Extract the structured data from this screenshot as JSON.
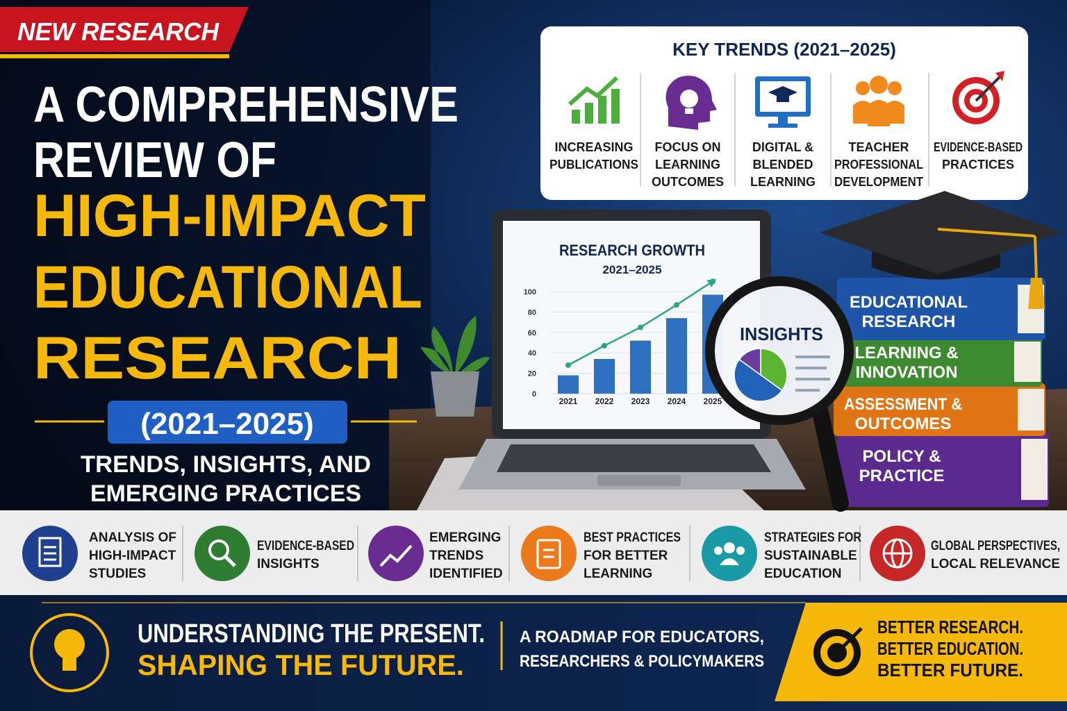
{
  "badge": "NEW RESEARCH",
  "title": {
    "lines": [
      "A COMPREHENSIVE",
      "REVIEW OF",
      "HIGH-IMPACT",
      "EDUCATIONAL",
      "RESEARCH"
    ]
  },
  "period": "(2021–2025)",
  "subtitle": [
    "TRENDS, INSIGHTS, AND",
    "EMERGING PRACTICES"
  ],
  "key_trends": {
    "title": "KEY TRENDS (2021–2025)",
    "items": [
      [
        "INCREASING",
        "PUBLICATIONS"
      ],
      [
        "FOCUS ON",
        "LEARNING",
        "OUTCOMES"
      ],
      [
        "DIGITAL &",
        "BLENDED",
        "LEARNING"
      ],
      [
        "TEACHER",
        "PROFESSIONAL",
        "DEVELOPMENT"
      ],
      [
        "EVIDENCE-BASED",
        "PRACTICES"
      ]
    ]
  },
  "chart_data": [
    {
      "type": "bar",
      "title": "RESEARCH GROWTH",
      "subtitle": "2021–2025",
      "categories": [
        "2021",
        "2022",
        "2023",
        "2024",
        "2025"
      ],
      "values": [
        18,
        34,
        52,
        74,
        97
      ],
      "color": "#2f6fc0",
      "trend": [
        28,
        47,
        65,
        87,
        110
      ],
      "trend_color": "#2aa58a",
      "ylim": [
        0,
        115
      ],
      "yticks": [
        0,
        20,
        40,
        60,
        80,
        100
      ],
      "grid": true
    },
    {
      "type": "pie",
      "title": "INSIGHTS",
      "values": [
        35,
        50,
        15
      ],
      "colors": [
        "#5cb531",
        "#2163b8",
        "#6a3ca0"
      ]
    }
  ],
  "books": [
    [
      "EDUCATIONAL",
      "RESEARCH"
    ],
    [
      "LEARNING &",
      "INNOVATION"
    ],
    [
      "ASSESSMENT &",
      "OUTCOMES"
    ],
    [
      "POLICY &",
      "PRACTICE"
    ]
  ],
  "features": [
    [
      "ANALYSIS OF",
      "HIGH-IMPACT",
      "STUDIES"
    ],
    [
      "EVIDENCE-BASED",
      "INSIGHTS"
    ],
    [
      "EMERGING",
      "TRENDS",
      "IDENTIFIED"
    ],
    [
      "BEST PRACTICES",
      "FOR BETTER",
      "LEARNING"
    ],
    [
      "STRATEGIES FOR",
      "SUSTAINABLE",
      "EDUCATION"
    ],
    [
      "GLOBAL PERSPECTIVES,",
      "LOCAL RELEVANCE"
    ]
  ],
  "footer": {
    "tagline": [
      "UNDERSTANDING THE PRESENT.",
      "SHAPING THE FUTURE."
    ],
    "roadmap": [
      "A ROADMAP FOR EDUCATORS,",
      "RESEARCHERS & POLICYMAKERS"
    ],
    "motto": [
      "BETTER RESEARCH.",
      "BETTER EDUCATION.",
      "BETTER FUTURE."
    ]
  }
}
